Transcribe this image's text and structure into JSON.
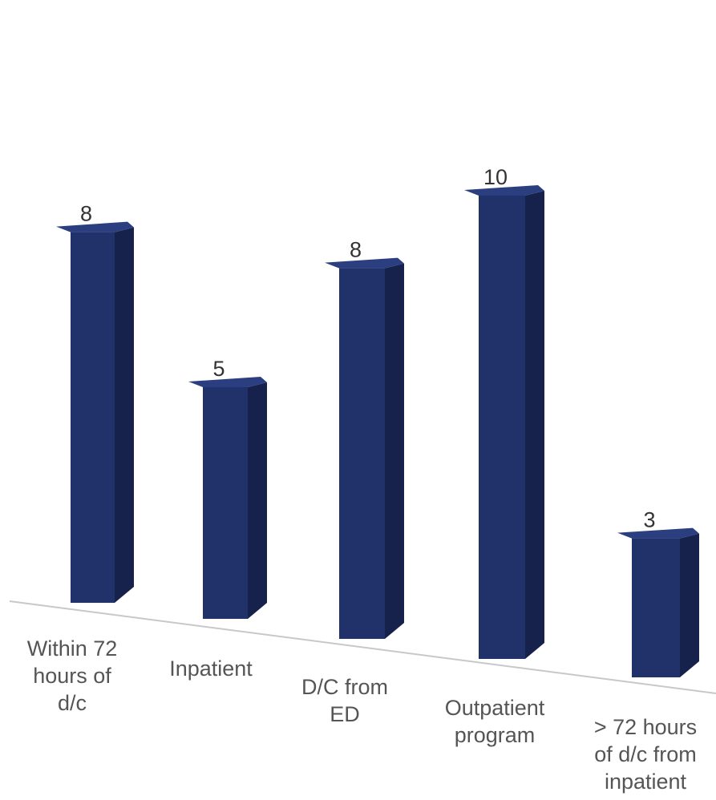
{
  "chart_data": {
    "type": "bar",
    "title": "",
    "xlabel": "",
    "ylabel": "",
    "categories": [
      [
        "Within 72",
        "hours of",
        "d/c"
      ],
      [
        "Inpatient"
      ],
      [
        "D/C from",
        "ED"
      ],
      [
        "Outpatient",
        "program"
      ],
      [
        "> 72 hours",
        "of d/c from",
        "inpatient"
      ]
    ],
    "values": [
      8,
      5,
      8,
      10,
      3
    ],
    "value_labels": [
      "8",
      "5",
      "8",
      "10",
      "3"
    ],
    "ylim": [
      0,
      10
    ],
    "grid": false,
    "legend": "none",
    "colors": {
      "bar_front": "#21326b",
      "bar_side": "#16224b",
      "bar_top": "#2b3f80",
      "axis_line": "#c8c8c8"
    }
  }
}
